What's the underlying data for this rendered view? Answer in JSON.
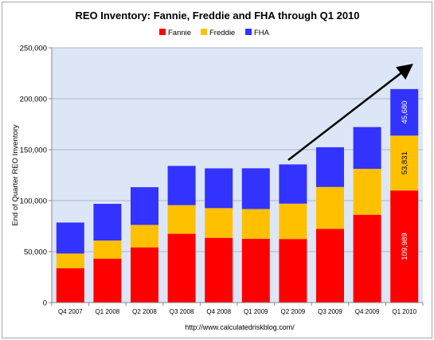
{
  "chart_data": {
    "type": "bar",
    "stacked": true,
    "title": "REO Inventory: Fannie, Freddie and FHA through Q1 2010",
    "ylabel": "End of Quarter REO Inventory",
    "xlabel": "",
    "source": "http://www.calculatedriskblog.com/",
    "categories": [
      "Q4 2007",
      "Q1 2008",
      "Q2 2008",
      "Q3 2008",
      "Q4 2008",
      "Q1 2009",
      "Q2 2009",
      "Q3 2009",
      "Q4 2009",
      "Q1 2010"
    ],
    "series": [
      {
        "name": "Fannie",
        "color": "#ff0000",
        "values": [
          33729,
          43167,
          54173,
          67519,
          63538,
          62615,
          62371,
          72275,
          86155,
          109989
        ]
      },
      {
        "name": "Freddie",
        "color": "#ffc000",
        "values": [
          14394,
          17707,
          22029,
          28084,
          29145,
          29145,
          34699,
          41133,
          45047,
          53831
        ]
      },
      {
        "name": "FHA",
        "color": "#3333ff",
        "values": [
          30400,
          36000,
          37000,
          38500,
          39000,
          40000,
          38500,
          39000,
          41000,
          45680
        ]
      }
    ],
    "data_labels": {
      "category": "Q1 2010",
      "values": [
        "109,989",
        "53,831",
        "45,680"
      ]
    },
    "ylim": [
      0,
      250000
    ],
    "yticks": [
      0,
      50000,
      100000,
      150000,
      200000,
      250000
    ],
    "ytick_labels": [
      "0",
      "50,000",
      "100,000",
      "150,000",
      "200,000",
      "250,000"
    ],
    "grid": true,
    "legend_position": "top-center",
    "annotation": "trend-arrow",
    "plot_background": "#dde6f6"
  }
}
